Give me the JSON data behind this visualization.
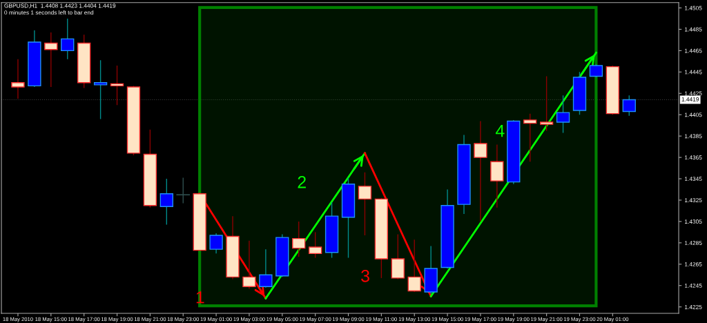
{
  "chart_data": {
    "type": "candlestick",
    "title": "GBPUSD,H1  1.4408 1.4423 1.4404 1.4419",
    "subtitle": "0 minutes 1 seconds left to bar end",
    "x": [
      "2010-05-18T13:00",
      "2010-05-18T14:00",
      "2010-05-18T15:00",
      "2010-05-18T16:00",
      "2010-05-18T17:00",
      "2010-05-18T18:00",
      "2010-05-18T19:00",
      "2010-05-18T20:00",
      "2010-05-18T21:00",
      "2010-05-18T22:00",
      "2010-05-18T23:00",
      "2010-05-19T00:00",
      "2010-05-19T01:00",
      "2010-05-19T02:00",
      "2010-05-19T03:00",
      "2010-05-19T04:00",
      "2010-05-19T05:00",
      "2010-05-19T06:00",
      "2010-05-19T07:00",
      "2010-05-19T08:00",
      "2010-05-19T09:00",
      "2010-05-19T10:00",
      "2010-05-19T11:00",
      "2010-05-19T12:00",
      "2010-05-19T13:00",
      "2010-05-19T14:00",
      "2010-05-19T15:00",
      "2010-05-19T16:00",
      "2010-05-19T17:00",
      "2010-05-19T18:00",
      "2010-05-19T19:00",
      "2010-05-19T20:00",
      "2010-05-19T21:00",
      "2010-05-19T22:00",
      "2010-05-19T23:00",
      "2010-05-20T00:00",
      "2010-05-20T01:00",
      "2010-05-20T02:00"
    ],
    "series": [
      {
        "ohlc": [
          [
            1.4435,
            1.4457,
            1.442,
            1.4431
          ],
          [
            1.4432,
            1.4484,
            1.4431,
            1.4473
          ],
          [
            1.4472,
            1.4482,
            1.4431,
            1.4466
          ],
          [
            1.4465,
            1.4495,
            1.4457,
            1.4476
          ],
          [
            1.4472,
            1.448,
            1.443,
            1.4435
          ],
          [
            1.4433,
            1.4456,
            1.4401,
            1.4435
          ],
          [
            1.4434,
            1.4451,
            1.4414,
            1.4432
          ],
          [
            1.4431,
            1.4432,
            1.4367,
            1.4369
          ],
          [
            1.4368,
            1.4391,
            1.4318,
            1.432
          ],
          [
            1.4319,
            1.4345,
            1.4302,
            1.4331
          ],
          [
            1.433,
            1.4346,
            1.4322,
            1.433
          ],
          [
            1.4331,
            1.4332,
            1.4278,
            1.4278
          ],
          [
            1.4279,
            1.4294,
            1.4275,
            1.4292
          ],
          [
            1.4291,
            1.431,
            1.4251,
            1.4253
          ],
          [
            1.4253,
            1.4287,
            1.4242,
            1.4244
          ],
          [
            1.4244,
            1.4279,
            1.4243,
            1.4255
          ],
          [
            1.4254,
            1.4293,
            1.4253,
            1.429
          ],
          [
            1.4289,
            1.4305,
            1.4272,
            1.428
          ],
          [
            1.4281,
            1.4295,
            1.4271,
            1.4275
          ],
          [
            1.4276,
            1.4323,
            1.4271,
            1.431
          ],
          [
            1.4309,
            1.4346,
            1.4271,
            1.434
          ],
          [
            1.4338,
            1.4351,
            1.4292,
            1.4326
          ],
          [
            1.4326,
            1.4327,
            1.4252,
            1.427
          ],
          [
            1.427,
            1.4293,
            1.4251,
            1.4252
          ],
          [
            1.4253,
            1.4288,
            1.4239,
            1.424
          ],
          [
            1.4239,
            1.4282,
            1.4237,
            1.4261
          ],
          [
            1.4262,
            1.4335,
            1.4261,
            1.432
          ],
          [
            1.4321,
            1.4386,
            1.4312,
            1.4377
          ],
          [
            1.4378,
            1.4399,
            1.4305,
            1.4365
          ],
          [
            1.4361,
            1.4377,
            1.4318,
            1.4343
          ],
          [
            1.4342,
            1.44,
            1.434,
            1.4399
          ],
          [
            1.44,
            1.4406,
            1.4361,
            1.4397
          ],
          [
            1.4398,
            1.4441,
            1.439,
            1.4396
          ],
          [
            1.4398,
            1.4423,
            1.4388,
            1.4407
          ],
          [
            1.4409,
            1.4445,
            1.4405,
            1.444
          ],
          [
            1.4441,
            1.4452,
            1.444,
            1.4451
          ],
          [
            1.445,
            1.4451,
            1.4405,
            1.4406
          ],
          [
            1.4408,
            1.4423,
            1.4404,
            1.4419
          ]
        ],
        "colors": [
          "#ffe4c4",
          "#0000ff",
          "#ffe4c4",
          "#0000ff",
          "#ffe4c4",
          "#0000ff",
          "#ffe4c4",
          "#ffe4c4",
          "#ffe4c4",
          "#0000ff",
          "#2f4f4f",
          "#ffe4c4",
          "#0000ff",
          "#ffe4c4",
          "#ffe4c4",
          "#0000ff",
          "#0000ff",
          "#ffe4c4",
          "#ffe4c4",
          "#0000ff",
          "#0000ff",
          "#ffe4c4",
          "#ffe4c4",
          "#ffe4c4",
          "#ffe4c4",
          "#0000ff",
          "#0000ff",
          "#0000ff",
          "#ffe4c4",
          "#ffe4c4",
          "#0000ff",
          "#ffe4c4",
          "#ffe4c4",
          "#0000ff",
          "#0000ff",
          "#0000ff",
          "#ffe4c4",
          "#0000ff"
        ]
      },
      {
        "type": "line",
        "name": "1",
        "color": "#ff0000",
        "x": [
          "2010-05-19T00:00",
          "2010-05-19T04:00"
        ],
        "values": [
          1.4331,
          1.4233
        ]
      },
      {
        "type": "line",
        "name": "2",
        "color": "#00ff00",
        "x": [
          "2010-05-19T04:00",
          "2010-05-19T10:00"
        ],
        "values": [
          1.4233,
          1.4369
        ]
      },
      {
        "type": "line",
        "name": "3",
        "color": "#ff0000",
        "x": [
          "2010-05-19T10:00",
          "2010-05-19T14:00"
        ],
        "values": [
          1.4369,
          1.4235
        ]
      },
      {
        "type": "line",
        "name": "4",
        "color": "#00ff00",
        "x": [
          "2010-05-19T14:00",
          "2010-05-20T00:00"
        ],
        "values": [
          1.4235,
          1.4463
        ]
      }
    ],
    "ref_lines": [
      {
        "axis": "y",
        "value": 1.4419,
        "label": "1.4419",
        "color": "#3a3a3a",
        "line_style": "dotted"
      }
    ],
    "bands": [
      {
        "axis": "x",
        "from": "2010-05-19T00:00",
        "to": "2010-05-20T00:00",
        "color": "#008000"
      }
    ],
    "xlim": [
      "2010-05-18T12:00",
      "2010-05-20T05:00"
    ],
    "xticks": [
      {
        "value": "2010-05-18T13:00",
        "label": "18 May 2010"
      },
      {
        "value": "2010-05-18T15:00",
        "label": "18 May 15:00"
      },
      {
        "value": "2010-05-18T17:00",
        "label": "18 May 17:00"
      },
      {
        "value": "2010-05-18T19:00",
        "label": "18 May 19:00"
      },
      {
        "value": "2010-05-18T21:00",
        "label": "18 May 21:00"
      },
      {
        "value": "2010-05-18T23:00",
        "label": "18 May 23:00"
      },
      {
        "value": "2010-05-19T01:00",
        "label": "19 May 01:00"
      },
      {
        "value": "2010-05-19T03:00",
        "label": "19 May 03:00"
      },
      {
        "value": "2010-05-19T05:00",
        "label": "19 May 05:00"
      },
      {
        "value": "2010-05-19T07:00",
        "label": "19 May 07:00"
      },
      {
        "value": "2010-05-19T09:00",
        "label": "19 May 09:00"
      },
      {
        "value": "2010-05-19T11:00",
        "label": "19 May 11:00"
      },
      {
        "value": "2010-05-19T13:00",
        "label": "19 May 13:00"
      },
      {
        "value": "2010-05-19T15:00",
        "label": "19 May 15:00"
      },
      {
        "value": "2010-05-19T17:00",
        "label": "19 May 17:00"
      },
      {
        "value": "2010-05-19T19:00",
        "label": "19 May 19:00"
      },
      {
        "value": "2010-05-19T21:00",
        "label": "19 May 21:00"
      },
      {
        "value": "2010-05-19T23:00",
        "label": "19 May 23:00"
      },
      {
        "value": "2010-05-20T01:00",
        "label": "20 May 01:00"
      }
    ],
    "ylim": [
      1.4219,
      1.451
    ],
    "yticks": [
      1.4225,
      1.4245,
      1.4265,
      1.4285,
      1.4305,
      1.4325,
      1.4345,
      1.4365,
      1.4385,
      1.4405,
      1.4425,
      1.4445,
      1.4465,
      1.4485,
      1.4505
    ]
  }
}
